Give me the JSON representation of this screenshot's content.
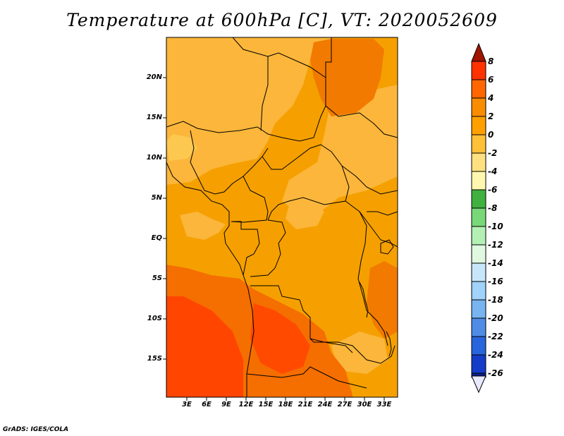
{
  "title": "Temperature at 600hPa [C], VT: 2020052609",
  "credit": "GrADS: IGES/COLA",
  "map": {
    "lat_labels": [
      "20N",
      "15N",
      "10N",
      "5N",
      "EQ",
      "5S",
      "10S",
      "15S"
    ],
    "lon_labels": [
      "3E",
      "6E",
      "9E",
      "12E",
      "15E",
      "18E",
      "21E",
      "24E",
      "27E",
      "30E",
      "33E"
    ],
    "background_color": "#f5a000"
  },
  "colorbar": {
    "labels": [
      "8",
      "6",
      "4",
      "2",
      "0",
      "-2",
      "-4",
      "-6",
      "-8",
      "-10",
      "-12",
      "-14",
      "-16",
      "-18",
      "-20",
      "-22",
      "-24",
      "-26"
    ],
    "colors_top_to_bottom": [
      "#a01400",
      "#ff3200",
      "#ff6600",
      "#fa8c00",
      "#ffa000",
      "#ffc038",
      "#ffe080",
      "#fff7b0",
      "#40b040",
      "#78d878",
      "#b4f0b4",
      "#e0f8e0",
      "#c8e6fa",
      "#a0d2fa",
      "#78b4f0",
      "#508ce6",
      "#2864dc",
      "#143cc8",
      "#0a1e8c",
      "#000060",
      "#e8e8ff"
    ]
  }
}
